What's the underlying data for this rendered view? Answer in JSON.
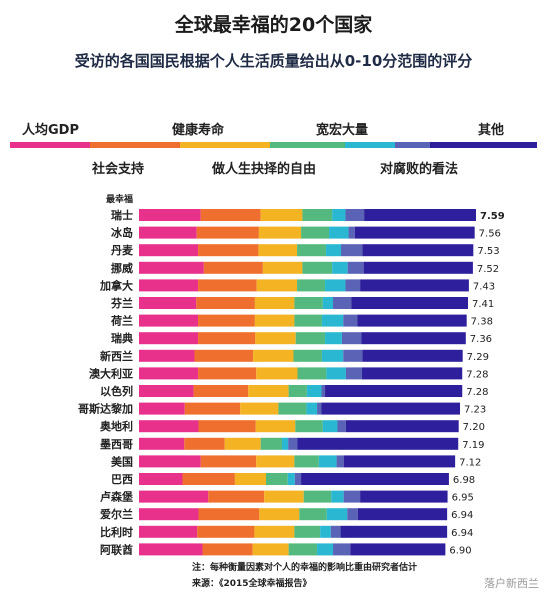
{
  "title": "全球最幸福的20个国家",
  "subtitle": "受访的各国国民根据个人生活质量给出从0-10分范围的评分",
  "legend_row1": [
    "人均GDP",
    "健康寿命",
    "宽宏大量",
    "其他"
  ],
  "legend_row2": [
    "社会支持",
    "做人生抉择的自由",
    "对腐败的看法"
  ],
  "colors": {
    "gdp": "#e8318a",
    "social": "#ef6f2e",
    "health": "#f4b322",
    "freedom": "#53b97e",
    "generosity": "#2ab7d1",
    "corruption": "#5a63b5",
    "other": "#2e1f9c"
  },
  "rank_header": "最幸福",
  "note": "注：每种衡量因素对个人的幸福的影响比重由研究者估计",
  "source": "来源：《2015全球幸福报告》",
  "watermark": "落户新西兰",
  "chart_data": {
    "type": "bar",
    "orientation": "horizontal",
    "stacked": true,
    "xlim": [
      0,
      7.59
    ],
    "categories": [
      "瑞士",
      "冰岛",
      "丹麦",
      "挪威",
      "加拿大",
      "芬兰",
      "荷兰",
      "瑞典",
      "新西兰",
      "澳大利亚",
      "以色列",
      "哥斯达黎加",
      "奥地利",
      "墨西哥",
      "美国",
      "巴西",
      "卢森堡",
      "爱尔兰",
      "比利时",
      "阿联酋"
    ],
    "totals": [
      "7.59",
      "7.56",
      "7.53",
      "7.52",
      "7.43",
      "7.41",
      "7.38",
      "7.36",
      "7.29",
      "7.28",
      "7.28",
      "7.23",
      "7.20",
      "7.19",
      "7.12",
      "6.98",
      "6.95",
      "6.94",
      "6.94",
      "6.90"
    ],
    "series": [
      {
        "name": "人均GDP",
        "values": [
          1.39,
          1.3,
          1.33,
          1.46,
          1.33,
          1.29,
          1.33,
          1.33,
          1.25,
          1.33,
          1.23,
          1.03,
          1.34,
          1.02,
          1.39,
          0.98,
          1.56,
          1.34,
          1.31,
          1.43
        ]
      },
      {
        "name": "社会支持",
        "values": [
          1.35,
          1.4,
          1.36,
          1.33,
          1.32,
          1.32,
          1.28,
          1.29,
          1.32,
          1.31,
          1.23,
          1.25,
          1.29,
          0.91,
          1.25,
          1.18,
          1.26,
          1.37,
          1.29,
          1.13
        ]
      },
      {
        "name": "健康寿命",
        "values": [
          0.94,
          0.95,
          0.87,
          0.89,
          0.91,
          0.89,
          0.89,
          0.91,
          0.91,
          0.93,
          0.91,
          0.86,
          0.89,
          0.81,
          0.86,
          0.7,
          0.89,
          0.9,
          0.9,
          0.81
        ]
      },
      {
        "name": "做人生抉择的自由",
        "values": [
          0.67,
          0.63,
          0.65,
          0.67,
          0.63,
          0.64,
          0.62,
          0.66,
          0.64,
          0.65,
          0.41,
          0.63,
          0.62,
          0.48,
          0.55,
          0.49,
          0.62,
          0.62,
          0.58,
          0.64
        ]
      },
      {
        "name": "宽宏大量",
        "values": [
          0.3,
          0.44,
          0.34,
          0.35,
          0.46,
          0.23,
          0.48,
          0.38,
          0.48,
          0.44,
          0.33,
          0.24,
          0.33,
          0.14,
          0.4,
          0.16,
          0.28,
          0.46,
          0.24,
          0.36
        ]
      },
      {
        "name": "对腐败的看法",
        "values": [
          0.42,
          0.14,
          0.48,
          0.36,
          0.33,
          0.41,
          0.32,
          0.44,
          0.43,
          0.36,
          0.08,
          0.1,
          0.19,
          0.21,
          0.16,
          0.14,
          0.37,
          0.24,
          0.22,
          0.39
        ]
      },
      {
        "name": "其他",
        "values": [
          2.52,
          2.7,
          2.5,
          2.46,
          2.45,
          2.63,
          2.46,
          2.35,
          2.26,
          2.26,
          3.09,
          3.12,
          2.54,
          3.62,
          2.51,
          3.33,
          1.97,
          2.01,
          2.4,
          2.14
        ]
      }
    ]
  }
}
